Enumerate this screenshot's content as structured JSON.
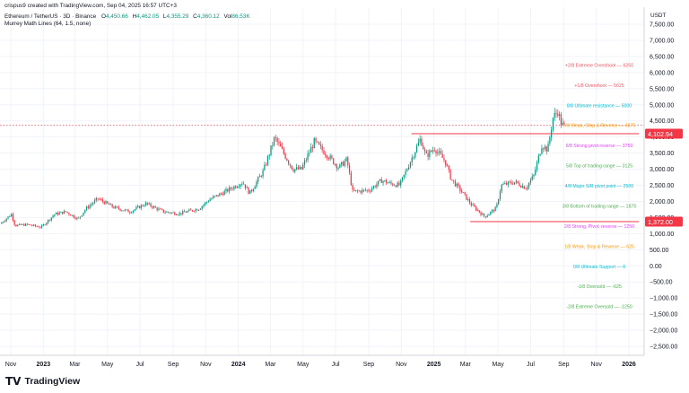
{
  "header": {
    "creator_line": "crispus9 created with TradingView.com, Sep 04, 2025 16:57 UTC+3",
    "symbol_line": "Ethereum / TetherUS · 3D · Binance",
    "open_label": "O",
    "open": "4,450.66",
    "high_label": "H",
    "high": "4,462.05",
    "low_label": "L",
    "low": "4,355.29",
    "close_label": "C",
    "close": "4,360.12",
    "vol_label": "Vol",
    "vol": "86.53K",
    "indicator_line": "Murrey Math Lines (64, 1.5, none)"
  },
  "currency_label": "USDT",
  "footer": {
    "logo_text": "TradingView",
    "logo_mark": "TV"
  },
  "colors": {
    "up": "#089981",
    "down": "#f23645",
    "grid": "#f0f3fa",
    "axis_text": "#131722",
    "price_tag": "#f23645",
    "current_price_line": "#f23645"
  },
  "chart_data": {
    "type": "candlestick",
    "title": "Ethereum / TetherUS",
    "xlabel": "",
    "ylabel": "",
    "ylim": [
      -2700,
      7850
    ],
    "y_ticks": [
      7500,
      7000,
      6500,
      6000,
      5500,
      5000,
      4500,
      4000,
      3500,
      3000,
      2500,
      2000,
      1500,
      1000,
      500,
      0,
      -500,
      -1000,
      -1500,
      -2000,
      -2500
    ],
    "y_tick_labels": [
      "7,500.00",
      "7,000.00",
      "6,500.00",
      "6,000.00",
      "5,500.00",
      "5,000.00",
      "4,500.00",
      "4,000.00",
      "3,500.00",
      "3,000.00",
      "2,500.00",
      "2,000.00",
      "1,500.00",
      "1,000.00",
      "500.00",
      "0.00",
      "−500.00",
      "−1,000.00",
      "−1,500.00",
      "−2,000.00",
      "−2,500.00"
    ],
    "x_ticks": [
      {
        "label": "Nov",
        "date": "2022-11-01",
        "bold": false
      },
      {
        "label": "2023",
        "date": "2023-01-01",
        "bold": true
      },
      {
        "label": "Mar",
        "date": "2023-03-01",
        "bold": false
      },
      {
        "label": "May",
        "date": "2023-05-01",
        "bold": false
      },
      {
        "label": "Jul",
        "date": "2023-07-01",
        "bold": false
      },
      {
        "label": "Sep",
        "date": "2023-09-01",
        "bold": false
      },
      {
        "label": "Nov",
        "date": "2023-11-01",
        "bold": false
      },
      {
        "label": "2024",
        "date": "2024-01-01",
        "bold": true
      },
      {
        "label": "Mar",
        "date": "2024-03-01",
        "bold": false
      },
      {
        "label": "May",
        "date": "2024-05-01",
        "bold": false
      },
      {
        "label": "Jul",
        "date": "2024-07-01",
        "bold": false
      },
      {
        "label": "Sep",
        "date": "2024-09-01",
        "bold": false
      },
      {
        "label": "Nov",
        "date": "2024-11-01",
        "bold": false
      },
      {
        "label": "2025",
        "date": "2025-01-01",
        "bold": true
      },
      {
        "label": "Mar",
        "date": "2025-03-01",
        "bold": false
      },
      {
        "label": "May",
        "date": "2025-05-01",
        "bold": false
      },
      {
        "label": "Jul",
        "date": "2025-07-01",
        "bold": false
      },
      {
        "label": "Sep",
        "date": "2025-09-01",
        "bold": false
      },
      {
        "label": "Nov",
        "date": "2025-11-01",
        "bold": false
      },
      {
        "label": "2026",
        "date": "2026-01-01",
        "bold": true
      }
    ],
    "price_path": [
      [
        "2022-10-15",
        1300
      ],
      [
        "2022-11-05",
        1600
      ],
      [
        "2022-11-12",
        1250
      ],
      [
        "2022-12-05",
        1280
      ],
      [
        "2022-12-31",
        1200
      ],
      [
        "2023-01-25",
        1600
      ],
      [
        "2023-02-15",
        1680
      ],
      [
        "2023-03-10",
        1450
      ],
      [
        "2023-03-25",
        1780
      ],
      [
        "2023-04-16",
        2080
      ],
      [
        "2023-05-15",
        1820
      ],
      [
        "2023-06-15",
        1680
      ],
      [
        "2023-07-15",
        1930
      ],
      [
        "2023-08-17",
        1680
      ],
      [
        "2023-09-15",
        1620
      ],
      [
        "2023-10-23",
        1780
      ],
      [
        "2023-11-10",
        2050
      ],
      [
        "2023-12-10",
        2300
      ],
      [
        "2024-01-12",
        2600
      ],
      [
        "2024-01-25",
        2250
      ],
      [
        "2024-02-20",
        2950
      ],
      [
        "2024-03-12",
        3980
      ],
      [
        "2024-04-01",
        3400
      ],
      [
        "2024-04-15",
        3000
      ],
      [
        "2024-05-01",
        3000
      ],
      [
        "2024-05-25",
        3850
      ],
      [
        "2024-06-15",
        3500
      ],
      [
        "2024-07-10",
        3050
      ],
      [
        "2024-07-25",
        3300
      ],
      [
        "2024-08-05",
        2300
      ],
      [
        "2024-09-05",
        2350
      ],
      [
        "2024-09-28",
        2650
      ],
      [
        "2024-10-15",
        2550
      ],
      [
        "2024-11-01",
        2500
      ],
      [
        "2024-12-10",
        3950
      ],
      [
        "2024-12-20",
        3400
      ],
      [
        "2025-01-05",
        3650
      ],
      [
        "2025-01-25",
        3250
      ],
      [
        "2025-02-05",
        2700
      ],
      [
        "2025-02-25",
        2300
      ],
      [
        "2025-03-15",
        1900
      ],
      [
        "2025-04-09",
        1520
      ],
      [
        "2025-05-01",
        1800
      ],
      [
        "2025-05-10",
        2500
      ],
      [
        "2025-06-05",
        2600
      ],
      [
        "2025-06-25",
        2420
      ],
      [
        "2025-07-10",
        2800
      ],
      [
        "2025-07-25",
        3750
      ],
      [
        "2025-08-05",
        3600
      ],
      [
        "2025-08-15",
        4600
      ],
      [
        "2025-08-24",
        4800
      ],
      [
        "2025-08-31",
        4380
      ],
      [
        "2025-09-04",
        4360
      ]
    ],
    "candle_interval_days": 3,
    "lines": [
      {
        "kind": "horizontal-segment",
        "value": 4102.94,
        "from": "2024-11-20",
        "to": "2026-01-20",
        "color": "#f23645"
      },
      {
        "kind": "horizontal-segment",
        "value": 1372.0,
        "from": "2025-03-10",
        "to": "2026-01-20",
        "color": "#f23645"
      },
      {
        "kind": "dotted-current",
        "value": 4360.12,
        "color": "#f23645"
      }
    ],
    "price_tags": [
      {
        "value": 4102.94,
        "label": "4,102.94",
        "color": "#f23645"
      },
      {
        "value": 1372.0,
        "label": "1,372.00",
        "color": "#f23645"
      }
    ],
    "murrey_labels": [
      {
        "text": "+2/8 Extreme Overshoot — 6250",
        "value": 6250,
        "color": "#f7525f"
      },
      {
        "text": "+1/8 Overshoot — 5625",
        "value": 5625,
        "color": "#f7525f"
      },
      {
        "text": "8/8 Ultimate resistance — 5000",
        "value": 5000,
        "color": "#00bcd4"
      },
      {
        "text": "7/8 Weak, Stop & Reverse — 4375",
        "value": 4375,
        "color": "#ff9800"
      },
      {
        "text": "6/8 Strong pivot reverse — 3750",
        "value": 3750,
        "color": "#e040fb"
      },
      {
        "text": "5/8 Top of trading range — 3125",
        "value": 3125,
        "color": "#4caf50"
      },
      {
        "text": "4/8 Major S/R pivot point — 2500",
        "value": 2500,
        "color": "#00bcd4"
      },
      {
        "text": "3/8 Bottom of trading range — 1875",
        "value": 1875,
        "color": "#4caf50"
      },
      {
        "text": "2/8 Strong, Pivot, reverse — 1250",
        "value": 1250,
        "color": "#e040fb"
      },
      {
        "text": "1/8 Weak, Stop & Reverse — 625",
        "value": 625,
        "color": "#ff9800"
      },
      {
        "text": "0/8 Ultimate Support — 0",
        "value": 0,
        "color": "#00bcd4"
      },
      {
        "text": "-1/8 Oversold — -625",
        "value": -625,
        "color": "#4caf50"
      },
      {
        "text": "-2/8 Extreme Oversold — -1250",
        "value": -1250,
        "color": "#4caf50"
      }
    ]
  }
}
